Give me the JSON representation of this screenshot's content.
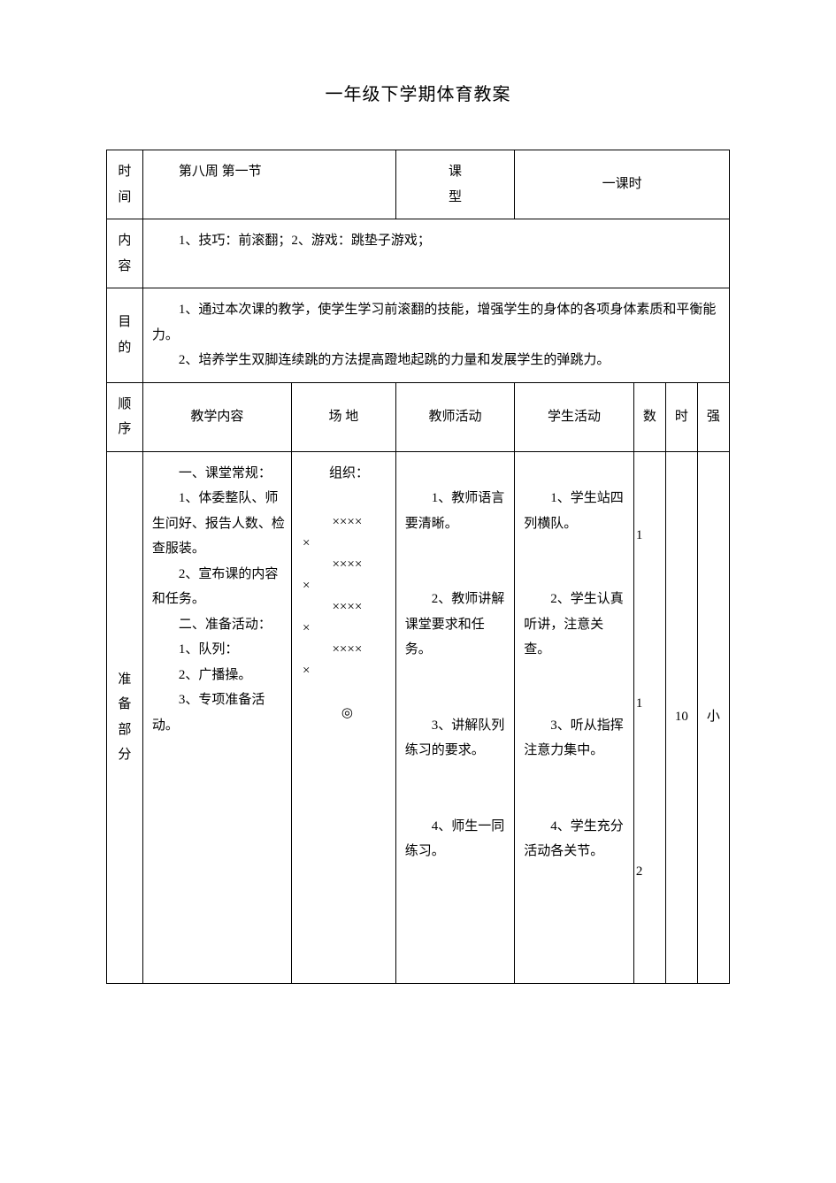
{
  "title": "一年级下学期体育教案",
  "labels": {
    "time": "时间",
    "type": "课型",
    "content": "内容",
    "purpose": "目的",
    "sequence": "顺序",
    "teaching_content": "教学内容",
    "field": "场    地",
    "teacher_activity": "教师活动",
    "student_activity": "学生活动",
    "count": "数",
    "time_col": "时",
    "intensity": "强",
    "prep_section": "准备部分"
  },
  "header": {
    "time_value": "第八周    第一节",
    "type_value": "一课时"
  },
  "content_row": "1、技巧：前滚翻；2、游戏：跳垫子游戏；",
  "purpose": {
    "p1": "1、通过本次课的教学，使学生学习前滚翻的技能，增强学生的身体的各项身体素质和平衡能力。",
    "p2": "2、培养学生双脚连续跳的方法提高蹬地起跳的力量和发展学生的弹跳力。"
  },
  "teaching_content_cell": {
    "l1": "一、课堂常规：",
    "l2": "1、体委整队、师生问好、报告人数、检查服装。",
    "l3": "2、宣布课的内容和任务。",
    "l4": "二、准备活动：",
    "l5": "1、队列：",
    "l6": "2、广播操。",
    "l7": "3、专项准备活动。"
  },
  "field_cell": {
    "org": "组织：",
    "row": "××××",
    "rowshort": "×",
    "teacher_mark": "◎"
  },
  "teacher_activity_cell": {
    "l1": "1、教师语言要清晰。",
    "l2": "2、教师讲解课堂要求和任务。",
    "l3": "3、讲解队列练习的要求。",
    "l4": "4、师生一同练习。"
  },
  "student_activity_cell": {
    "l1": "1、学生站四列横队。",
    "l2": "2、学生认真听讲，注意关查。",
    "l3": "3、听从指挥注意力集中。",
    "l4": "4、学生充分活动各关节。"
  },
  "counts": {
    "n1": "1",
    "n2": "1",
    "n3": "2"
  },
  "time_vals": {
    "t1": "10"
  },
  "intensity_vals": {
    "i1": "小"
  }
}
